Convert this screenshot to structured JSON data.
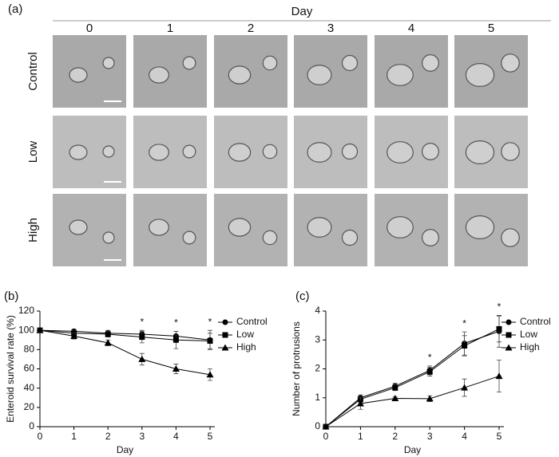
{
  "panel_labels": [
    "(a)",
    "(b)",
    "(c)"
  ],
  "images": {
    "column_title": "Day",
    "columns": [
      "0",
      "1",
      "2",
      "3",
      "4",
      "5"
    ],
    "rows": [
      "Control",
      "Low",
      "High"
    ]
  },
  "chart_data": [
    {
      "type": "line",
      "xlabel": "Day",
      "ylabel": "Enteroid survival rate (%)",
      "x": [
        0,
        1,
        2,
        3,
        4,
        5
      ],
      "xlim": [
        0,
        5
      ],
      "xticks": [
        0,
        1,
        2,
        3,
        4,
        5
      ],
      "ylim": [
        0,
        120
      ],
      "yticks": [
        0,
        20,
        40,
        60,
        80,
        100,
        120
      ],
      "grid": false,
      "legend": "upper right",
      "series": [
        {
          "name": "Control",
          "color": "#000000",
          "marker": "circle",
          "values": [
            100,
            99,
            97,
            96,
            94,
            90
          ],
          "errors": [
            1,
            2,
            3,
            4,
            5,
            10
          ]
        },
        {
          "name": "Low",
          "color": "#000000",
          "marker": "square",
          "values": [
            100,
            97,
            96,
            93,
            90,
            89
          ],
          "errors": [
            1,
            3,
            3,
            6,
            9,
            8
          ]
        },
        {
          "name": "High",
          "color": "#000000",
          "marker": "triangle",
          "values": [
            100,
            94,
            87,
            70,
            60,
            54
          ],
          "errors": [
            1,
            3,
            3,
            6,
            5,
            6
          ]
        }
      ],
      "annotations": [
        {
          "x": 3,
          "text": "*"
        },
        {
          "x": 4,
          "text": "*"
        },
        {
          "x": 5,
          "text": "*"
        }
      ]
    },
    {
      "type": "line",
      "xlabel": "Day",
      "ylabel": "Number of protrusions",
      "x": [
        0,
        1,
        2,
        3,
        4,
        5
      ],
      "xlim": [
        0,
        5
      ],
      "xticks": [
        0,
        1,
        2,
        3,
        4,
        5
      ],
      "ylim": [
        0,
        4
      ],
      "yticks": [
        0,
        1,
        2,
        3,
        4
      ],
      "grid": false,
      "legend": "upper right",
      "series": [
        {
          "name": "Control",
          "color": "#000000",
          "marker": "circle",
          "values": [
            0,
            1.0,
            1.4,
            1.95,
            2.88,
            3.3
          ],
          "errors": [
            0,
            0.1,
            0.1,
            0.15,
            0.4,
            0.55
          ]
        },
        {
          "name": "Low",
          "color": "#000000",
          "marker": "square",
          "values": [
            0,
            0.95,
            1.35,
            1.9,
            2.8,
            3.38
          ],
          "errors": [
            0,
            0.1,
            0.1,
            0.15,
            0.35,
            0.45
          ]
        },
        {
          "name": "High",
          "color": "#000000",
          "marker": "triangle",
          "values": [
            0,
            0.8,
            0.98,
            0.97,
            1.35,
            1.75
          ],
          "errors": [
            0,
            0.2,
            0.05,
            0.1,
            0.3,
            0.55
          ]
        }
      ],
      "annotations": [
        {
          "x": 3,
          "text": "*"
        },
        {
          "x": 4,
          "text": "*"
        },
        {
          "x": 5,
          "text": "*"
        }
      ]
    }
  ]
}
